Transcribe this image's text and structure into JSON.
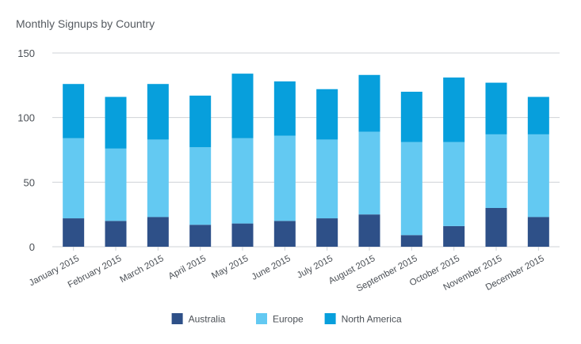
{
  "chart_data": {
    "type": "bar",
    "stacked": true,
    "title": "Monthly Signups by Country",
    "xlabel": "",
    "ylabel": "",
    "ylim": [
      0,
      150
    ],
    "yticks": [
      0,
      50,
      100,
      150
    ],
    "grid": true,
    "legend_position": "bottom",
    "categories": [
      "January 2015",
      "February 2015",
      "March 2015",
      "April 2015",
      "May 2015",
      "June 2015",
      "July 2015",
      "August 2015",
      "September 2015",
      "October 2015",
      "November 2015",
      "December 2015"
    ],
    "series": [
      {
        "name": "Australia",
        "color": "#2e5088",
        "values": [
          22,
          20,
          23,
          17,
          18,
          20,
          22,
          25,
          9,
          16,
          30,
          23
        ]
      },
      {
        "name": "Europe",
        "color": "#63c9f2",
        "values": [
          62,
          56,
          60,
          60,
          66,
          66,
          61,
          64,
          72,
          65,
          57,
          64
        ]
      },
      {
        "name": "North America",
        "color": "#079fdc",
        "values": [
          42,
          40,
          43,
          40,
          50,
          42,
          39,
          44,
          39,
          50,
          40,
          29
        ]
      }
    ]
  }
}
